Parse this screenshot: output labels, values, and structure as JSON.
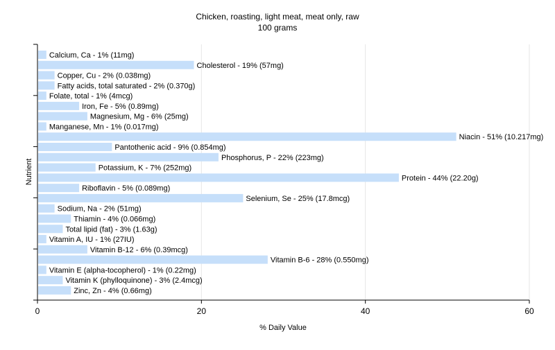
{
  "chart_data": {
    "type": "bar",
    "orientation": "horizontal",
    "title": "Chicken, roasting, light meat, meat only, raw",
    "subtitle": "100 grams",
    "xlabel": "% Daily Value",
    "ylabel": "Nutrient",
    "xlim": [
      0,
      60
    ],
    "xticks": [
      0,
      20,
      40,
      60
    ],
    "grid": true,
    "bar_color": "#c6dffa",
    "categories": [
      "Calcium, Ca",
      "Cholesterol",
      "Copper, Cu",
      "Fatty acids, total saturated",
      "Folate, total",
      "Iron, Fe",
      "Magnesium, Mg",
      "Manganese, Mn",
      "Niacin",
      "Pantothenic acid",
      "Phosphorus, P",
      "Potassium, K",
      "Protein",
      "Riboflavin",
      "Selenium, Se",
      "Sodium, Na",
      "Thiamin",
      "Total lipid (fat)",
      "Vitamin A, IU",
      "Vitamin B-12",
      "Vitamin B-6",
      "Vitamin E (alpha-tocopherol)",
      "Vitamin K (phylloquinone)",
      "Zinc, Zn"
    ],
    "values": [
      1,
      19,
      2,
      2,
      1,
      5,
      6,
      1,
      51,
      9,
      22,
      7,
      44,
      5,
      25,
      2,
      4,
      3,
      1,
      6,
      28,
      1,
      3,
      4
    ],
    "labels": [
      "Calcium, Ca - 1% (11mg)",
      "Cholesterol - 19% (57mg)",
      "Copper, Cu - 2% (0.038mg)",
      "Fatty acids, total saturated - 2% (0.370g)",
      "Folate, total - 1% (4mcg)",
      "Iron, Fe - 5% (0.89mg)",
      "Magnesium, Mg - 6% (25mg)",
      "Manganese, Mn - 1% (0.017mg)",
      "Niacin - 51% (10.217mg)",
      "Pantothenic acid - 9% (0.854mg)",
      "Phosphorus, P - 22% (223mg)",
      "Potassium, K - 7% (252mg)",
      "Protein - 44% (22.20g)",
      "Riboflavin - 5% (0.089mg)",
      "Selenium, Se - 25% (17.8mcg)",
      "Sodium, Na - 2% (51mg)",
      "Thiamin - 4% (0.066mg)",
      "Total lipid (fat) - 3% (1.63g)",
      "Vitamin A, IU - 1% (27IU)",
      "Vitamin B-12 - 6% (0.39mcg)",
      "Vitamin B-6 - 28% (0.550mg)",
      "Vitamin E (alpha-tocopherol) - 1% (0.22mg)",
      "Vitamin K (phylloquinone) - 3% (2.4mcg)",
      "Zinc, Zn - 4% (0.66mg)"
    ]
  }
}
